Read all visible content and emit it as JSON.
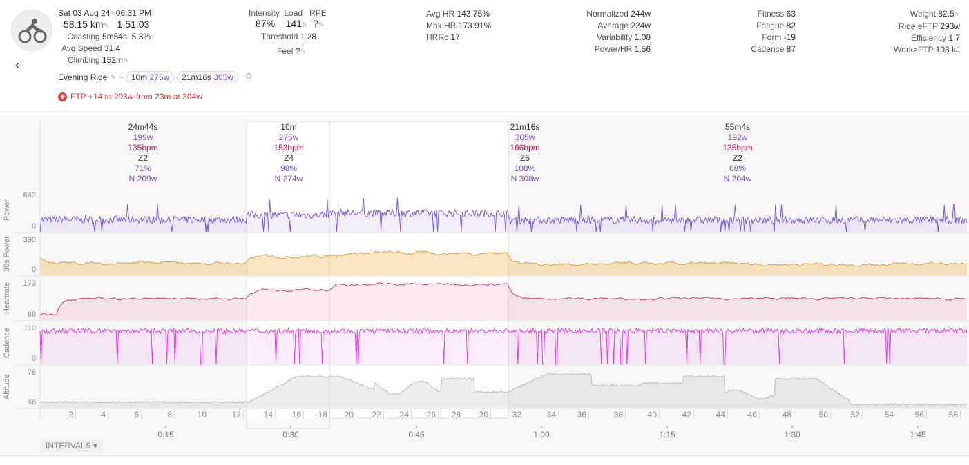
{
  "header": {
    "date": "Sat 03 Aug 24",
    "time": "06:31 PM",
    "distance": "58.15 km",
    "duration": "1:51:03",
    "coasting_label": "Coasting",
    "coasting": "5m54s",
    "coasting_pct": "5.3%",
    "avg_speed_label": "Avg Speed",
    "avg_speed": "31.4",
    "climbing_label": "Climbing",
    "climbing": "152m",
    "name": "Evening Ride",
    "tilde": "~",
    "chips": [
      {
        "time": "10m",
        "power": "275w"
      },
      {
        "time": "21m16s",
        "power": "305w"
      }
    ],
    "ftp_note": "FTP +14 to 293w from 23m at 304w",
    "intensity_label": "Intensity",
    "load_label": "Load",
    "rpe_label": "RPE",
    "intensity": "87%",
    "load": "141",
    "rpe": "?",
    "threshold_label": "Threshold",
    "threshold": "1.28",
    "feel_label": "Feel",
    "feel": "?",
    "hr": [
      {
        "label": "Avg HR",
        "value": "143  75%"
      },
      {
        "label": "Max HR",
        "value": "173  91%"
      },
      {
        "label": "HRRc",
        "value": "17"
      }
    ],
    "power": [
      {
        "label": "Normalized",
        "value": "244w"
      },
      {
        "label": "Average",
        "value": "224w"
      },
      {
        "label": "Variability",
        "value": "1.08"
      },
      {
        "label": "Power/HR",
        "value": "1.56"
      }
    ],
    "fitness": [
      {
        "label": "Fitness",
        "value": "63"
      },
      {
        "label": "Fatigue",
        "value": "82"
      },
      {
        "label": "Form",
        "value": "-19"
      },
      {
        "label": "Cadence",
        "value": "87"
      }
    ],
    "other": [
      {
        "label": "Weight",
        "value": "82.5"
      },
      {
        "label": "Ride eFTP",
        "value": "293w"
      },
      {
        "label": "Efficiency",
        "value": "1.7"
      },
      {
        "label": "Work>FTP",
        "value": "103 kJ"
      }
    ]
  },
  "intervals": [
    {
      "duration": "24m44s",
      "power": "199w",
      "hr": "135bpm",
      "zone": "Z2",
      "pct": "71%",
      "np": "N 209w"
    },
    {
      "duration": "10m",
      "power": "275w",
      "hr": "153bpm",
      "zone": "Z4",
      "pct": "98%",
      "np": "N 274w"
    },
    {
      "duration": "21m16s",
      "power": "305w",
      "hr": "166bpm",
      "zone": "Z5",
      "pct": "108%",
      "np": "N 308w"
    },
    {
      "duration": "55m4s",
      "power": "192w",
      "hr": "135bpm",
      "zone": "Z2",
      "pct": "68%",
      "np": "N 204w"
    }
  ],
  "panels": [
    {
      "label": "Power",
      "max": "643",
      "min": "0",
      "color": "#7b5bd6"
    },
    {
      "label": "30s Power",
      "max": "390",
      "min": "0",
      "color": "#e0a030"
    },
    {
      "label": "Heartrate",
      "max": "173",
      "min": "89",
      "color": "#d63c6a"
    },
    {
      "label": "Cadence",
      "max": "110",
      "min": "0",
      "color": "#e040e0"
    },
    {
      "label": "Altitude",
      "max": "76",
      "min": "46",
      "color": "#bbbbbb"
    }
  ],
  "km_ticks": [
    "2",
    "4",
    "6",
    "8",
    "10",
    "12",
    "14",
    "16",
    "18",
    "20",
    "22",
    "24",
    "26",
    "28",
    "30",
    "32",
    "34",
    "36",
    "38",
    "40",
    "42",
    "44",
    "46",
    "48",
    "50",
    "52",
    "54",
    "56",
    "58"
  ],
  "time_ticks": [
    "0:15",
    "0:30",
    "0:45",
    "1:00",
    "1:15",
    "1:30",
    "1:45"
  ],
  "intervals_button": "INTERVALS"
}
